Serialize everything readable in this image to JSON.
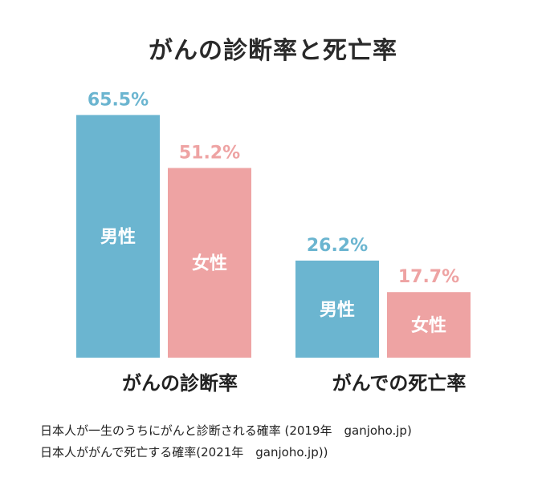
{
  "title": "がんの診断率と死亡率",
  "colors": {
    "male": "#6bb5d0",
    "female": "#eea3a3",
    "bar_text": "#ffffff",
    "male_label": "#6bb5d0",
    "female_label": "#eea3a3"
  },
  "chart_data": {
    "type": "bar",
    "title": "がんの診断率と死亡率",
    "categories": [
      "がんの診断率",
      "がんでの死亡率"
    ],
    "series": [
      {
        "name": "男性",
        "values": [
          65.5,
          26.2
        ],
        "labels": [
          "65.5%",
          "26.2%"
        ]
      },
      {
        "name": "女性",
        "values": [
          51.2,
          17.7
        ],
        "labels": [
          "51.2%",
          "17.7%"
        ]
      }
    ],
    "unit": "%",
    "ylim": [
      0,
      100
    ],
    "grid": false,
    "legend": "none"
  },
  "notes": [
    "日本人が一生のうちにがんと診断される確率 (2019年　ganjoho.jp)",
    "日本人ががんで死亡する確率(2021年　ganjoho.jp))"
  ]
}
